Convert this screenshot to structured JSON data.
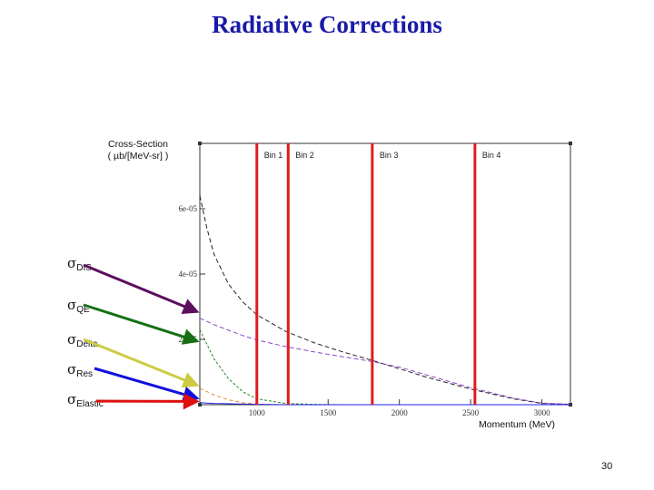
{
  "slide": {
    "title": "Radiative Corrections",
    "page_number": "30"
  },
  "chart_data": {
    "type": "line",
    "title": "Radiative Corrections",
    "ylabel_lines": [
      "Cross-Section",
      "( µb/[MeV-sr] )"
    ],
    "xlabel": "Momentum (MeV)",
    "xlim": [
      600,
      3200
    ],
    "ylim": [
      0,
      8e-05
    ],
    "x_ticks": [
      1000,
      1500,
      2000,
      2500,
      3000
    ],
    "x_tick_labels": [
      "1000",
      "1500",
      "2000",
      "2500",
      "3000"
    ],
    "y_ticks": [
      2e-05,
      4e-05,
      6e-05
    ],
    "y_tick_labels": [
      "2e-05",
      "4e-05",
      "6e-05"
    ],
    "bins": [
      {
        "label": "Bin 1",
        "x": 1000
      },
      {
        "label": "Bin 2",
        "x": 1220
      },
      {
        "label": "Bin 3",
        "x": 1810
      },
      {
        "label": "Bin 4",
        "x": 2530
      }
    ],
    "curves": {
      "x": [
        600,
        650,
        700,
        800,
        900,
        1000,
        1200,
        1400,
        1600,
        1800,
        2000,
        2200,
        2500,
        2800,
        3000,
        3200
      ],
      "series": [
        {
          "name": "total",
          "color": "#222222",
          "dash": "5,3",
          "values": [
            6.4e-05,
            5.4e-05,
            4.6e-05,
            3.7e-05,
            3.15e-05,
            2.75e-05,
            2.25e-05,
            1.9e-05,
            1.62e-05,
            1.37e-05,
            1.1e-05,
            8.3e-06,
            4.8e-06,
            1.8e-06,
            4e-07,
            1e-07
          ]
        },
        {
          "name": "DIS",
          "color": "#8844cc",
          "dash": "5,3",
          "values": [
            2.65e-05,
            2.55e-05,
            2.45e-05,
            2.28e-05,
            2.12e-05,
            1.98e-05,
            1.78e-05,
            1.62e-05,
            1.47e-05,
            1.33e-05,
            1.15e-05,
            9e-06,
            5.2e-06,
            2e-06,
            5e-07,
            1e-07
          ]
        },
        {
          "name": "QE",
          "color": "#228822",
          "dash": "3,2",
          "values": [
            2.3e-05,
            1.85e-05,
            1.4e-05,
            8e-06,
            4e-06,
            1.8e-06,
            4e-07,
            1e-07,
            0.0,
            0.0,
            0.0,
            0.0,
            0.0,
            0.0,
            0.0,
            0.0
          ]
        },
        {
          "name": "Delta",
          "color": "#e08a2a",
          "dash": "4,3",
          "values": [
            5e-06,
            4e-06,
            3e-06,
            1.5e-06,
            6e-07,
            2e-07,
            0.0,
            0.0,
            0.0,
            0.0,
            0.0,
            0.0,
            0.0,
            0.0,
            0.0,
            0.0
          ]
        },
        {
          "name": "Elastic",
          "color": "#2222ee",
          "dash": "",
          "values": [
            6e-07,
            5e-07,
            4e-07,
            3e-07,
            2e-07,
            1e-07,
            0.0,
            0.0,
            0.0,
            0.0,
            0.0,
            0.0,
            0.0,
            0.0,
            0.0,
            0.0
          ]
        }
      ]
    },
    "arrow_labels": [
      {
        "symbol": "σ",
        "sub": "DIS",
        "color": "#5c0f5c",
        "target": [
          1000,
          2.85e-05
        ]
      },
      {
        "symbol": "σ",
        "sub": "QE",
        "color": "#157015",
        "target": [
          1000,
          1.95e-05
        ]
      },
      {
        "symbol": "σ",
        "sub": "Delta",
        "color": "#cccc44",
        "target": [
          1000,
          6e-06
        ]
      },
      {
        "symbol": "σ",
        "sub": "Res",
        "color": "#1010dd",
        "target": [
          1000,
          2e-06
        ]
      },
      {
        "symbol": "σ",
        "sub": "Elastic",
        "color": "#dd1010",
        "target": [
          1000,
          1e-06
        ]
      }
    ]
  }
}
